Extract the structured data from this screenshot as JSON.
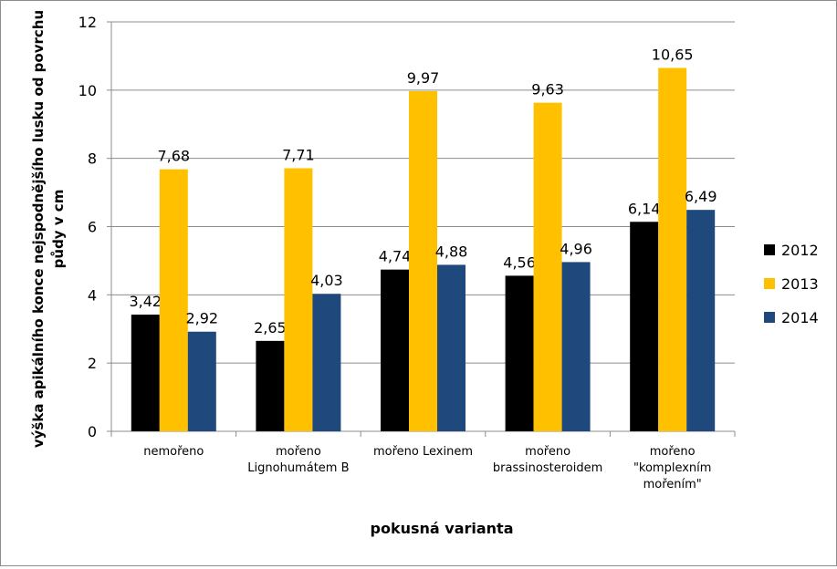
{
  "chart_data": {
    "type": "bar",
    "categories": [
      [
        "nemořeno"
      ],
      [
        "mořeno",
        "Lignohumátem B"
      ],
      [
        "mořeno Lexinem"
      ],
      [
        "mořeno",
        "brassinosteroidem"
      ],
      [
        "mořeno",
        "\"komplexním",
        "mořením\""
      ]
    ],
    "series": [
      {
        "name": "2012",
        "color": "#000000",
        "values": [
          3.42,
          2.65,
          4.74,
          4.56,
          6.14
        ],
        "labels": [
          "3,42",
          "2,65",
          "4,74",
          "4,56",
          "6,14"
        ]
      },
      {
        "name": "2013",
        "color": "#ffc000",
        "values": [
          7.68,
          7.71,
          9.97,
          9.63,
          10.65
        ],
        "labels": [
          "7,68",
          "7,71",
          "9,97",
          "9,63",
          "10,65"
        ]
      },
      {
        "name": "2014",
        "color": "#1f497d",
        "values": [
          2.92,
          4.03,
          4.88,
          4.96,
          6.49
        ],
        "labels": [
          "2,92",
          "4,03",
          "4,88",
          "4,96",
          "6,49"
        ]
      }
    ],
    "xlabel": "pokusná varianta",
    "ylabel": [
      "výška apikálního konce nejspodnějšího lusku od povrchu",
      "půdy v cm"
    ],
    "ylim": [
      0,
      12
    ],
    "yticks": [
      "0",
      "2",
      "4",
      "6",
      "8",
      "10",
      "12"
    ],
    "grid": true,
    "legend": "right"
  }
}
